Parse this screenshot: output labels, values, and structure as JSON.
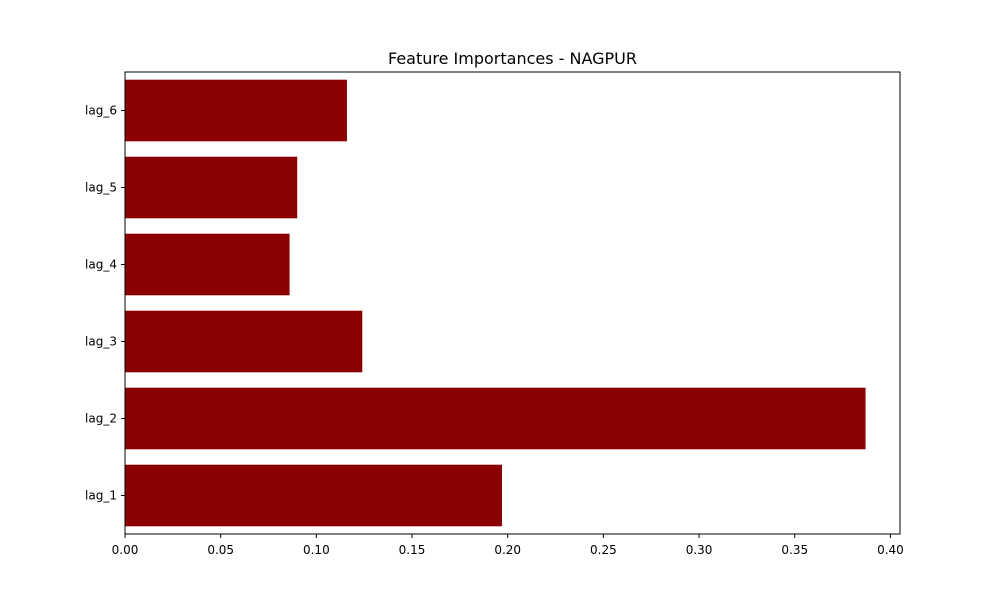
{
  "chart_data": {
    "type": "bar",
    "orientation": "horizontal",
    "title": "Feature Importances - NAGPUR",
    "xlabel": "",
    "ylabel": "",
    "categories": [
      "lag_1",
      "lag_2",
      "lag_3",
      "lag_4",
      "lag_5",
      "lag_6"
    ],
    "values": [
      0.197,
      0.387,
      0.124,
      0.086,
      0.09,
      0.116
    ],
    "xlim": [
      0,
      0.405
    ],
    "xticks": [
      0.0,
      0.05,
      0.1,
      0.15,
      0.2,
      0.25,
      0.3,
      0.35,
      0.4
    ],
    "xtick_labels": [
      "0.00",
      "0.05",
      "0.10",
      "0.15",
      "0.20",
      "0.25",
      "0.30",
      "0.35",
      "0.40"
    ],
    "grid": false,
    "colors": {
      "bar": "#8b0000",
      "axes": "#000000",
      "background": "#ffffff"
    }
  }
}
